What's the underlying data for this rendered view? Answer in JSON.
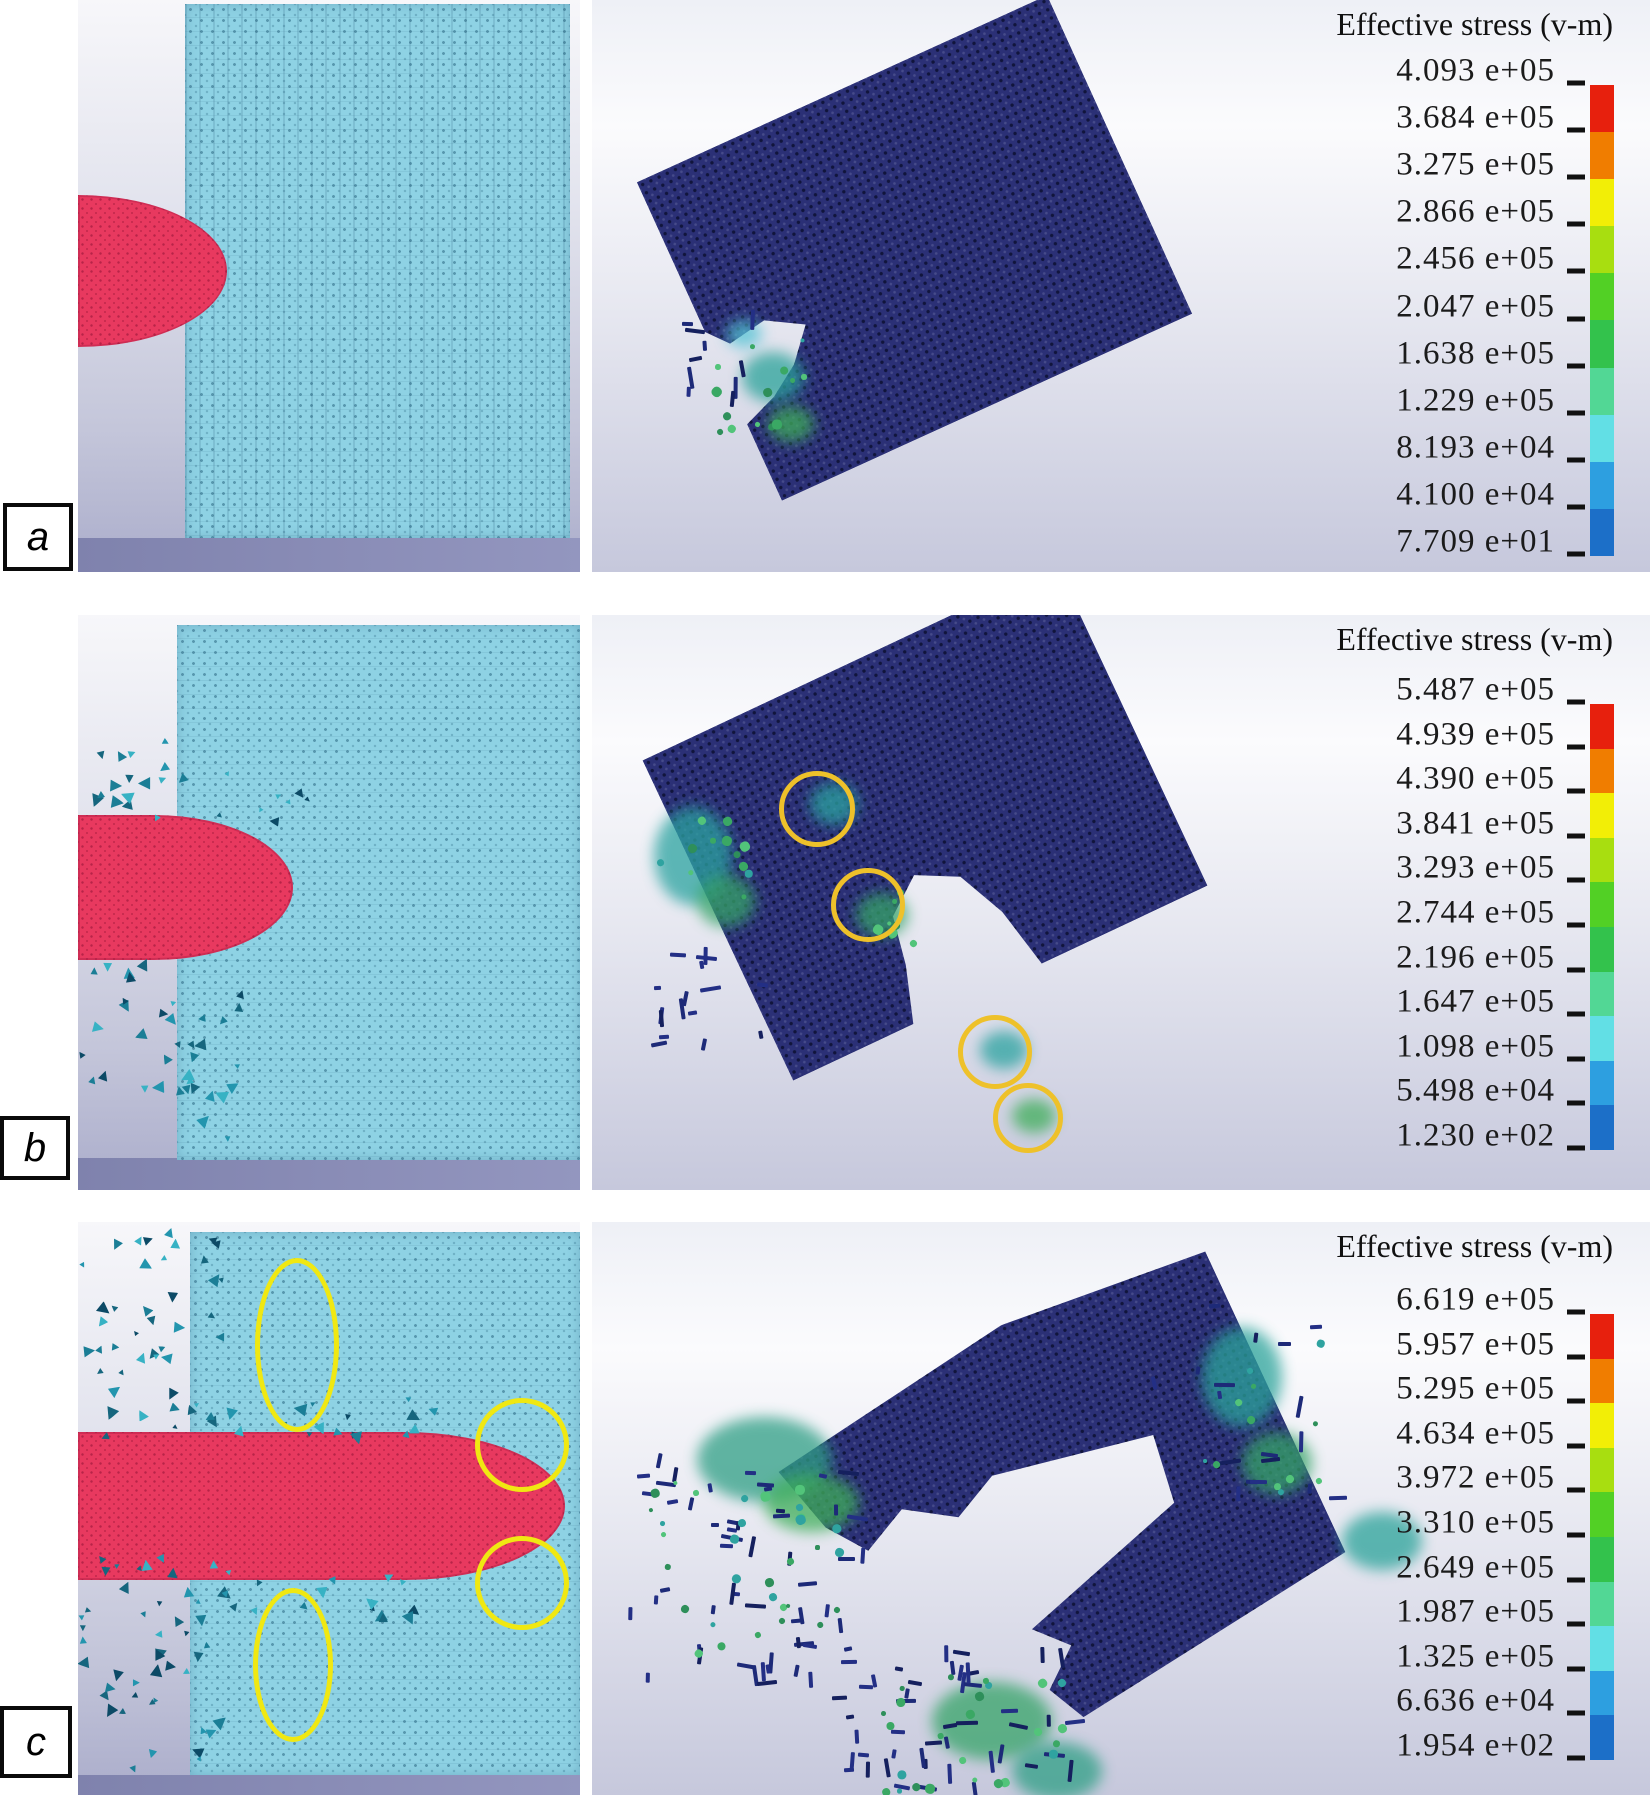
{
  "figure": {
    "legend_title": "Effective stress (v-m)",
    "rows": [
      {
        "label": "a",
        "legend_values": [
          "4.093 e+05",
          "3.684 e+05",
          "3.275 e+05",
          "2.866 e+05",
          "2.456 e+05",
          "2.047 e+05",
          "1.638 e+05",
          "1.229 e+05",
          "8.193 e+04",
          "4.100 e+04",
          "7.709 e+01"
        ]
      },
      {
        "label": "b",
        "legend_values": [
          "5.487 e+05",
          "4.939 e+05",
          "4.390 e+05",
          "3.841 e+05",
          "3.293 e+05",
          "2.744 e+05",
          "2.196 e+05",
          "1.647 e+05",
          "1.098 e+05",
          "5.498 e+04",
          "1.230 e+02"
        ]
      },
      {
        "label": "c",
        "legend_values": [
          "6.619 e+05",
          "5.957 e+05",
          "5.295 e+05",
          "4.634 e+05",
          "3.972 e+05",
          "3.310 e+05",
          "2.649 e+05",
          "1.987 e+05",
          "1.325 e+05",
          "6.636 e+04",
          "1.954 e+02"
        ]
      }
    ],
    "colorbar_colors": [
      "#e7200d",
      "#f07d00",
      "#f2ee06",
      "#a8de10",
      "#52d025",
      "#33c24c",
      "#52d795",
      "#62dfe5",
      "#2d9fe0",
      "#1c6fc8"
    ],
    "colors": {
      "projectile_red": "#e8395f",
      "target_cyan": "#8ed2e4",
      "plate_navy": "#2b3076",
      "highlight_yellow_left": "#f0e812",
      "highlight_yellow_right": "#eec12a",
      "background": "#ffffff"
    }
  }
}
